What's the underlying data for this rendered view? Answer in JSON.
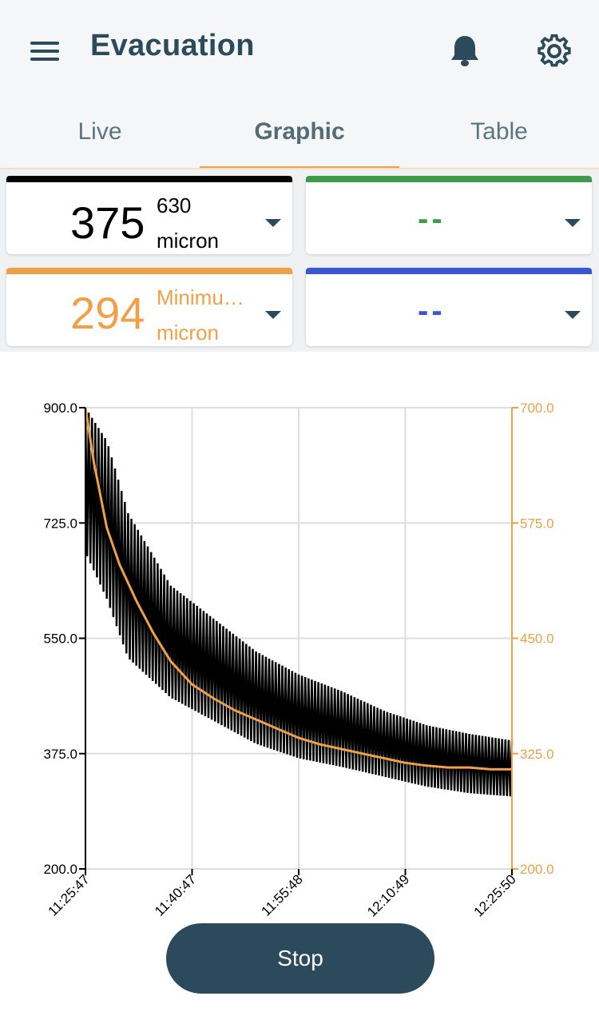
{
  "header": {
    "title": "Evacuation"
  },
  "tabs": [
    {
      "label": "Live"
    },
    {
      "label": "Graphic"
    },
    {
      "label": "Table"
    }
  ],
  "cards": [
    {
      "value": "375",
      "top_label": "630",
      "unit": "micron",
      "color": "#000000"
    },
    {
      "value": "--",
      "color": "#3f9a4a"
    },
    {
      "value": "294",
      "top_label": "Minimu…",
      "unit": "micron",
      "color": "#f0a046"
    },
    {
      "value": "--",
      "color": "#3a56d8"
    }
  ],
  "chart_data": {
    "type": "line",
    "x_ticks": [
      "11:25:47",
      "11:40:47",
      "11:55:48",
      "12:10:49",
      "12:25:50"
    ],
    "y_left": {
      "ticks": [
        "900.0",
        "725.0",
        "550.0",
        "375.0",
        "200.0"
      ],
      "range": [
        200,
        900
      ],
      "color": "#000000"
    },
    "y_right": {
      "ticks": [
        "700.0",
        "575.0",
        "450.0",
        "325.0",
        "200.0"
      ],
      "range": [
        200,
        700
      ],
      "color": "#f0a046"
    },
    "grid": true,
    "series": [
      {
        "axis": "left",
        "color": "#000000",
        "style": "oscillating",
        "x": [
          0,
          5,
          10,
          20,
          30,
          40,
          50,
          60,
          70,
          80,
          90,
          100
        ],
        "upper": [
          900,
          850,
          740,
          630,
          580,
          530,
          495,
          470,
          440,
          418,
          405,
          395
        ],
        "lower": [
          680,
          610,
          520,
          460,
          425,
          390,
          368,
          355,
          340,
          325,
          315,
          310
        ]
      },
      {
        "axis": "right",
        "color": "#f0a046",
        "x": [
          0,
          2,
          5,
          8,
          12,
          16,
          20,
          25,
          30,
          35,
          40,
          45,
          50,
          55,
          60,
          65,
          70,
          75,
          80,
          85,
          90,
          95,
          100
        ],
        "y": [
          700,
          640,
          570,
          530,
          490,
          455,
          425,
          400,
          385,
          372,
          362,
          352,
          342,
          335,
          330,
          325,
          320,
          315,
          312,
          310,
          310,
          308,
          308
        ]
      }
    ]
  },
  "actions": {
    "stop_label": "Stop"
  }
}
